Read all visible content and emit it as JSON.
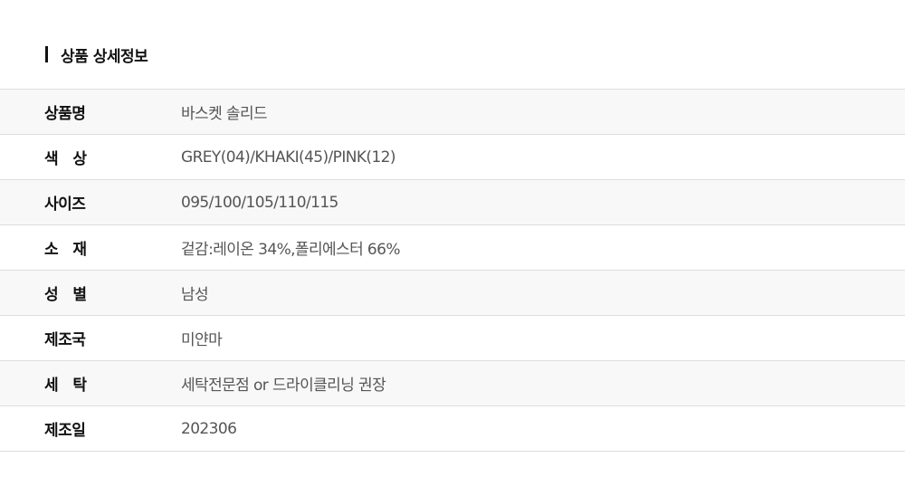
{
  "title": "상품 상세정보",
  "rows": [
    {
      "label": "상품명",
      "value": "바스켓 솔리드"
    },
    {
      "label": "색   상",
      "value": "GREY(04)/KHAKI(45)/PINK(12)"
    },
    {
      "label": "사이즈",
      "value": "095/100/105/110/115"
    },
    {
      "label": "소   재",
      "value": "겉감:레이온 34%,폴리에스터 66%"
    },
    {
      "label": "성   별",
      "value": "남성"
    },
    {
      "label": "제조국",
      "value": "미얀마"
    },
    {
      "label": "세   탁",
      "value": "세탁전문점 or 드라이클리닝 권장"
    },
    {
      "label": "제조일",
      "value": "202306"
    }
  ]
}
